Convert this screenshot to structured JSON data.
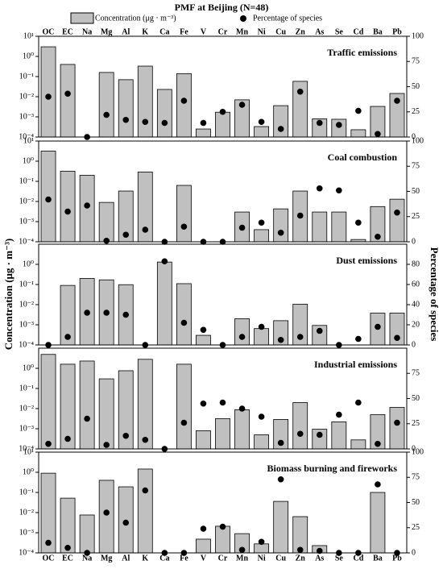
{
  "figure": {
    "title": "PMF at Beijing (N=48)",
    "ylabel": "Concentration (μg · m⁻³)",
    "y2label": "Percentage of species"
  },
  "chart_data": [
    {
      "type": "bar",
      "title": "Traffic emissions",
      "log_y": true,
      "categories": [
        "OC",
        "EC",
        "Na",
        "Mg",
        "Al",
        "K",
        "Ca",
        "Fe",
        "V",
        "Cr",
        "Mn",
        "Ni",
        "Cu",
        "Zn",
        "As",
        "Se",
        "Cd",
        "Ba",
        "Pb"
      ],
      "ylim": [
        0.0001,
        10
      ],
      "yticks": [
        {
          "value": 10,
          "label": "10¹"
        },
        {
          "value": 1,
          "label": "10⁰"
        },
        {
          "value": 0.1,
          "label": "10⁻¹"
        },
        {
          "value": 0.01,
          "label": "10⁻²"
        },
        {
          "value": 0.001,
          "label": "10⁻³"
        },
        {
          "value": 0.0001,
          "label": "10⁻⁴"
        }
      ],
      "y2lim": [
        0,
        100
      ],
      "y2ticks": [
        0,
        25,
        50,
        75,
        100
      ],
      "series": [
        {
          "name": "Concentration (μg · m⁻³)",
          "color": "#c0c0c0",
          "values": [
            3.0,
            0.4,
            null,
            0.16,
            0.07,
            0.33,
            0.023,
            0.14,
            0.00025,
            0.0017,
            0.007,
            0.00033,
            0.0036,
            0.058,
            0.0008,
            0.00076,
            0.00023,
            0.0033,
            0.0145
          ]
        },
        {
          "name": "Percentage of species",
          "color": "#000000",
          "axis": "y2",
          "kind": "scatter",
          "values": [
            40,
            43,
            0,
            22,
            17,
            15,
            14,
            36,
            14,
            25,
            32,
            15,
            8,
            45,
            14,
            12,
            26,
            3,
            36
          ]
        }
      ]
    },
    {
      "type": "bar",
      "title": "Coal combustion",
      "log_y": true,
      "categories": [
        "OC",
        "EC",
        "Na",
        "Mg",
        "Al",
        "K",
        "Ca",
        "Fe",
        "V",
        "Cr",
        "Mn",
        "Ni",
        "Cu",
        "Zn",
        "As",
        "Se",
        "Cd",
        "Ba",
        "Pb"
      ],
      "ylim": [
        0.0001,
        10
      ],
      "yticks": [
        {
          "value": 10,
          "label": "10¹"
        },
        {
          "value": 1,
          "label": "10⁰"
        },
        {
          "value": 0.1,
          "label": "10⁻¹"
        },
        {
          "value": 0.01,
          "label": "10⁻²"
        },
        {
          "value": 0.001,
          "label": "10⁻³"
        },
        {
          "value": 0.0001,
          "label": "10⁻⁴"
        }
      ],
      "y2lim": [
        0,
        100
      ],
      "y2ticks": [
        0,
        25,
        50,
        75,
        100
      ],
      "series": [
        {
          "name": "Concentration (μg · m⁻³)",
          "color": "#c0c0c0",
          "values": [
            3.2,
            0.32,
            0.2,
            0.009,
            0.033,
            0.29,
            null,
            0.063,
            null,
            null,
            0.003,
            0.0004,
            0.0043,
            0.033,
            0.003,
            0.003,
            0.00013,
            0.0056,
            0.013
          ]
        },
        {
          "name": "Percentage of species",
          "color": "#000000",
          "axis": "y2",
          "kind": "scatter",
          "values": [
            42,
            30,
            36,
            1,
            7,
            12,
            0,
            15,
            0,
            0,
            14,
            19,
            9,
            26,
            53,
            51,
            19,
            5,
            29
          ]
        }
      ]
    },
    {
      "type": "bar",
      "title": "Dust emissions",
      "log_y": true,
      "categories": [
        "OC",
        "EC",
        "Na",
        "Mg",
        "Al",
        "K",
        "Ca",
        "Fe",
        "V",
        "Cr",
        "Mn",
        "Ni",
        "Cu",
        "Zn",
        "As",
        "Se",
        "Cd",
        "Ba",
        "Pb"
      ],
      "ylim": [
        0.0001,
        10
      ],
      "yticks": [
        {
          "value": 1,
          "label": "10⁰"
        },
        {
          "value": 0.1,
          "label": "10⁻¹"
        },
        {
          "value": 0.01,
          "label": "10⁻²"
        },
        {
          "value": 0.001,
          "label": "10⁻³"
        },
        {
          "value": 0.0001,
          "label": "10⁻⁴"
        }
      ],
      "y2lim": [
        0,
        100
      ],
      "y2ticks": [
        0,
        20,
        40,
        60,
        80
      ],
      "series": [
        {
          "name": "Concentration (μg · m⁻³)",
          "color": "#c0c0c0",
          "values": [
            null,
            0.09,
            0.2,
            0.17,
            0.098,
            null,
            1.3,
            0.11,
            0.0003,
            null,
            0.002,
            0.00065,
            0.0016,
            0.0105,
            0.00093,
            null,
            null,
            0.0038,
            0.0038
          ]
        },
        {
          "name": "Percentage of species",
          "color": "#000000",
          "axis": "y2",
          "kind": "scatter",
          "values": [
            0,
            8,
            32,
            32,
            30,
            0,
            83,
            22,
            15,
            0,
            8,
            18,
            5,
            8,
            14,
            0,
            6,
            18,
            7
          ]
        }
      ]
    },
    {
      "type": "bar",
      "title": "Industrial emissions",
      "log_y": true,
      "categories": [
        "OC",
        "EC",
        "Na",
        "Mg",
        "Al",
        "K",
        "Ca",
        "Fe",
        "V",
        "Cr",
        "Mn",
        "Ni",
        "Cu",
        "Zn",
        "As",
        "Se",
        "Cd",
        "Ba",
        "Pb"
      ],
      "ylim": [
        0.0001,
        10
      ],
      "yticks": [
        {
          "value": 1,
          "label": "10⁰"
        },
        {
          "value": 0.1,
          "label": "10⁻¹"
        },
        {
          "value": 0.01,
          "label": "10⁻²"
        },
        {
          "value": 0.001,
          "label": "10⁻³"
        },
        {
          "value": 0.0001,
          "label": "10⁻⁴"
        }
      ],
      "y2lim": [
        0,
        100
      ],
      "y2ticks": [
        0,
        25,
        50,
        75
      ],
      "series": [
        {
          "name": "Concentration (μg · m⁻³)",
          "color": "#c0c0c0",
          "values": [
            4.9,
            1.6,
            2.3,
            0.3,
            0.76,
            2.8,
            null,
            1.6,
            0.0008,
            0.0032,
            0.0088,
            0.0005,
            0.0029,
            0.02,
            0.00095,
            0.0022,
            0.00028,
            0.005,
            0.0115
          ]
        },
        {
          "name": "Percentage of species",
          "color": "#000000",
          "axis": "y2",
          "kind": "scatter",
          "values": [
            5,
            10,
            30,
            4,
            13,
            9,
            0,
            26,
            45,
            46,
            40,
            32,
            6,
            15,
            14,
            34,
            46,
            5,
            26
          ]
        }
      ]
    },
    {
      "type": "bar",
      "title": "Biomass burning and fireworks",
      "log_y": true,
      "categories": [
        "OC",
        "EC",
        "Na",
        "Mg",
        "Al",
        "K",
        "Ca",
        "Fe",
        "V",
        "Cr",
        "Mn",
        "Ni",
        "Cu",
        "Zn",
        "As",
        "Se",
        "Cd",
        "Ba",
        "Pb"
      ],
      "ylim": [
        0.0001,
        10
      ],
      "yticks": [
        {
          "value": 10,
          "label": "10¹"
        },
        {
          "value": 1,
          "label": "10⁰"
        },
        {
          "value": 0.1,
          "label": "10⁻¹"
        },
        {
          "value": 0.01,
          "label": "10⁻²"
        },
        {
          "value": 0.001,
          "label": "10⁻³"
        },
        {
          "value": 0.0001,
          "label": "10⁻⁴"
        }
      ],
      "y2lim": [
        0,
        100
      ],
      "y2ticks": [
        0,
        25,
        50,
        75,
        100
      ],
      "series": [
        {
          "name": "Concentration (μg · m⁻³)",
          "color": "#c0c0c0",
          "values": [
            0.9,
            0.052,
            0.0076,
            0.4,
            0.19,
            1.45,
            null,
            null,
            0.00048,
            0.0021,
            0.0009,
            0.00028,
            0.036,
            0.0063,
            0.00023,
            null,
            null,
            0.1,
            null
          ]
        },
        {
          "name": "Percentage of species",
          "color": "#000000",
          "axis": "y2",
          "kind": "scatter",
          "values": [
            10,
            5,
            0,
            40,
            30,
            62,
            0,
            0,
            24,
            26,
            3,
            11,
            73,
            3,
            2,
            0,
            0,
            68,
            0
          ]
        }
      ]
    }
  ]
}
